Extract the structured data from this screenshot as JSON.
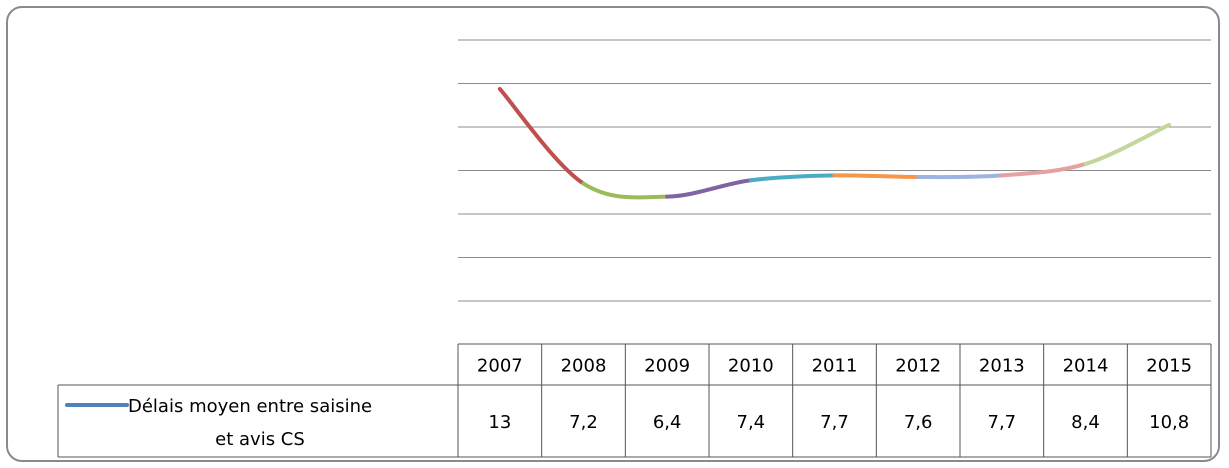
{
  "chart_data": {
    "type": "line",
    "categories": [
      "2007",
      "2008",
      "2009",
      "2010",
      "2011",
      "2012",
      "2013",
      "2014",
      "2015"
    ],
    "series": [
      {
        "name_lines": [
          "Délais moyen  entre saisine",
          "et avis CS"
        ],
        "value_labels": [
          "13",
          "7,2",
          "6,4",
          "7,4",
          "7,7",
          "7,6",
          "7,7",
          "8,4",
          "10,8"
        ],
        "values": [
          13,
          7.2,
          6.4,
          7.4,
          7.7,
          7.6,
          7.7,
          8.4,
          10.8
        ],
        "legend_color": "#4f81bd",
        "segment_colors": [
          "#c0504d",
          "#9bbb59",
          "#8064a2",
          "#4bacc6",
          "#f79646",
          "#9fb3e0",
          "#e6a1a1",
          "#c3d69b"
        ]
      }
    ],
    "ylim": [
      0,
      16
    ],
    "grid": true,
    "legend": "data-table"
  }
}
